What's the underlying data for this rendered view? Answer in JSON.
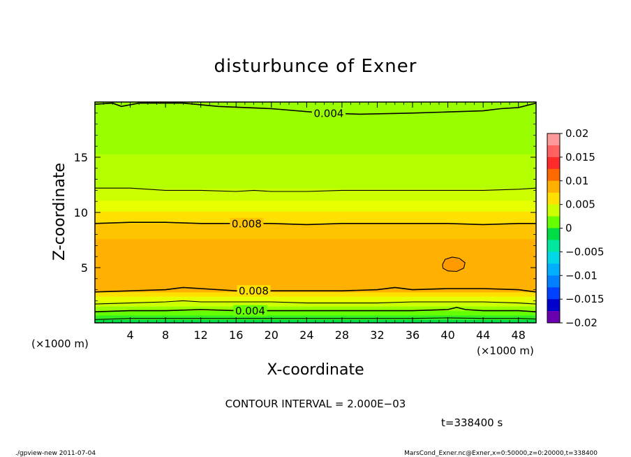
{
  "chart_data": {
    "type": "heatmap",
    "title": "disturbunce of Exner",
    "xlabel": "X-coordinate",
    "ylabel": "Z-coordinate",
    "x_unit_label": "(×1000 m)",
    "y_unit_label": "(×1000 m)",
    "xlim": [
      0,
      50
    ],
    "ylim": [
      0,
      20
    ],
    "x_ticks": [
      4,
      8,
      12,
      16,
      20,
      24,
      28,
      32,
      36,
      40,
      44,
      48
    ],
    "y_ticks": [
      5,
      10,
      15
    ],
    "colorbar": {
      "min": -0.02,
      "max": 0.02,
      "tick_values": [
        0.02,
        0.015,
        0.01,
        0.005,
        0,
        -0.005,
        -0.01,
        -0.015,
        -0.02
      ],
      "tick_labels": [
        "0.02",
        "0.015",
        "0.01",
        "0.005",
        "0",
        "−0.005",
        "−0.01",
        "−0.015",
        "−0.02"
      ],
      "levels": [
        {
          "from": 0.0175,
          "to": 0.02,
          "color": "#ff9a9a"
        },
        {
          "from": 0.015,
          "to": 0.0175,
          "color": "#ff6060"
        },
        {
          "from": 0.0125,
          "to": 0.015,
          "color": "#ff2a2a"
        },
        {
          "from": 0.01,
          "to": 0.0125,
          "color": "#ff6a00"
        },
        {
          "from": 0.0075,
          "to": 0.01,
          "color": "#ffb000"
        },
        {
          "from": 0.005,
          "to": 0.0075,
          "color": "#ffe000"
        },
        {
          "from": 0.0025,
          "to": 0.005,
          "color": "#ccff00"
        },
        {
          "from": 0,
          "to": 0.0025,
          "color": "#66ff00"
        },
        {
          "from": -0.0025,
          "to": 0,
          "color": "#00dd44"
        },
        {
          "from": -0.005,
          "to": -0.0025,
          "color": "#00e8a0"
        },
        {
          "from": -0.0075,
          "to": -0.005,
          "color": "#00d8e8"
        },
        {
          "from": -0.01,
          "to": -0.0075,
          "color": "#00b0ff"
        },
        {
          "from": -0.0125,
          "to": -0.01,
          "color": "#0080ff"
        },
        {
          "from": -0.015,
          "to": -0.0125,
          "color": "#0040ff"
        },
        {
          "from": -0.0175,
          "to": -0.015,
          "color": "#0000cc"
        },
        {
          "from": -0.02,
          "to": -0.0175,
          "color": "#6a00b0"
        }
      ]
    },
    "field_bands": [
      {
        "z0": 0.0,
        "z1": 0.3,
        "color": "#00dd44"
      },
      {
        "z0": 0.3,
        "z1": 0.7,
        "color": "#33ee22"
      },
      {
        "z0": 0.7,
        "z1": 1.1,
        "color": "#66ff00"
      },
      {
        "z0": 1.1,
        "z1": 1.5,
        "color": "#99ff00"
      },
      {
        "z0": 1.5,
        "z1": 1.9,
        "color": "#ccff00"
      },
      {
        "z0": 1.9,
        "z1": 2.4,
        "color": "#e8ff00"
      },
      {
        "z0": 2.4,
        "z1": 2.8,
        "color": "#ffe000"
      },
      {
        "z0": 2.8,
        "z1": 7.6,
        "color": "#ffb000"
      },
      {
        "z0": 7.6,
        "z1": 9.0,
        "color": "#ffc400"
      },
      {
        "z0": 9.0,
        "z1": 10.1,
        "color": "#ffe000"
      },
      {
        "z0": 10.1,
        "z1": 11.1,
        "color": "#e8ff00"
      },
      {
        "z0": 11.1,
        "z1": 12.2,
        "color": "#ccff00"
      },
      {
        "z0": 12.2,
        "z1": 15.3,
        "color": "#b4ff00"
      },
      {
        "z0": 15.3,
        "z1": 20.0,
        "color": "#99ff00"
      }
    ],
    "contours": [
      {
        "level": 0.004,
        "label": "0.004",
        "label_x": 26.5,
        "points": [
          [
            0,
            19.8
          ],
          [
            2,
            19.9
          ],
          [
            3,
            19.6
          ],
          [
            5,
            19.9
          ],
          [
            10,
            19.9
          ],
          [
            14,
            19.6
          ],
          [
            20,
            19.4
          ],
          [
            26,
            19.0
          ],
          [
            30,
            18.9
          ],
          [
            36,
            19.0
          ],
          [
            40,
            19.1
          ],
          [
            44,
            19.2
          ],
          [
            46,
            19.4
          ],
          [
            48,
            19.5
          ],
          [
            50,
            19.9
          ]
        ]
      },
      {
        "level": 0.006,
        "label": "",
        "label_x": null,
        "points": [
          [
            0,
            12.2
          ],
          [
            4,
            12.2
          ],
          [
            8,
            12.0
          ],
          [
            12,
            12.0
          ],
          [
            16,
            11.9
          ],
          [
            18,
            12.0
          ],
          [
            20,
            11.9
          ],
          [
            24,
            11.9
          ],
          [
            28,
            12.0
          ],
          [
            32,
            12.0
          ],
          [
            36,
            12.0
          ],
          [
            40,
            12.0
          ],
          [
            44,
            12.0
          ],
          [
            48,
            12.1
          ],
          [
            50,
            12.2
          ]
        ]
      },
      {
        "level": 0.008,
        "label": "0.008",
        "label_x": 17.2,
        "points": [
          [
            0,
            9.0
          ],
          [
            4,
            9.1
          ],
          [
            8,
            9.1
          ],
          [
            12,
            9.0
          ],
          [
            16,
            9.0
          ],
          [
            20,
            9.0
          ],
          [
            24,
            8.9
          ],
          [
            28,
            9.0
          ],
          [
            32,
            9.0
          ],
          [
            36,
            9.0
          ],
          [
            40,
            9.0
          ],
          [
            44,
            8.9
          ],
          [
            48,
            9.0
          ],
          [
            50,
            9.0
          ]
        ]
      },
      {
        "level": 0.01,
        "label": "",
        "label_x": null,
        "points": [
          [
            39.4,
            5.3
          ],
          [
            39.7,
            5.75
          ],
          [
            40.5,
            5.95
          ],
          [
            41.3,
            5.85
          ],
          [
            41.95,
            5.45
          ],
          [
            41.8,
            4.95
          ],
          [
            41.0,
            4.65
          ],
          [
            40.0,
            4.7
          ],
          [
            39.45,
            4.95
          ],
          [
            39.4,
            5.3
          ]
        ]
      },
      {
        "level": 0.008,
        "label": "0.008",
        "label_x": 18.0,
        "points": [
          [
            0,
            2.8
          ],
          [
            4,
            2.9
          ],
          [
            8,
            3.0
          ],
          [
            10,
            3.2
          ],
          [
            12,
            3.1
          ],
          [
            16,
            2.9
          ],
          [
            20,
            2.9
          ],
          [
            24,
            2.9
          ],
          [
            28,
            2.9
          ],
          [
            32,
            3.0
          ],
          [
            34,
            3.2
          ],
          [
            36,
            3.0
          ],
          [
            40,
            3.1
          ],
          [
            42,
            3.1
          ],
          [
            44,
            3.1
          ],
          [
            48,
            3.0
          ],
          [
            50,
            2.8
          ]
        ]
      },
      {
        "level": 0.006,
        "label": "",
        "label_x": null,
        "points": [
          [
            0,
            1.7
          ],
          [
            4,
            1.8
          ],
          [
            8,
            1.9
          ],
          [
            10,
            2.0
          ],
          [
            12,
            1.9
          ],
          [
            16,
            1.9
          ],
          [
            20,
            1.9
          ],
          [
            24,
            1.8
          ],
          [
            28,
            1.8
          ],
          [
            32,
            1.8
          ],
          [
            36,
            1.9
          ],
          [
            40,
            1.9
          ],
          [
            44,
            1.9
          ],
          [
            48,
            1.8
          ],
          [
            50,
            1.7
          ]
        ]
      },
      {
        "level": 0.004,
        "label": "0.004",
        "label_x": 17.6,
        "points": [
          [
            0,
            1.0
          ],
          [
            4,
            1.1
          ],
          [
            8,
            1.1
          ],
          [
            12,
            1.2
          ],
          [
            16,
            1.1
          ],
          [
            20,
            1.1
          ],
          [
            24,
            1.1
          ],
          [
            28,
            1.1
          ],
          [
            32,
            1.1
          ],
          [
            36,
            1.1
          ],
          [
            40,
            1.2
          ],
          [
            41,
            1.4
          ],
          [
            42,
            1.2
          ],
          [
            44,
            1.1
          ],
          [
            48,
            1.1
          ],
          [
            50,
            1.0
          ]
        ]
      },
      {
        "level": 0.002,
        "label": "",
        "label_x": null,
        "points": [
          [
            0,
            0.3
          ],
          [
            4,
            0.4
          ],
          [
            8,
            0.4
          ],
          [
            12,
            0.4
          ],
          [
            16,
            0.4
          ],
          [
            20,
            0.4
          ],
          [
            24,
            0.4
          ],
          [
            28,
            0.4
          ],
          [
            32,
            0.4
          ],
          [
            36,
            0.4
          ],
          [
            40,
            0.45
          ],
          [
            44,
            0.4
          ],
          [
            48,
            0.4
          ],
          [
            50,
            0.35
          ]
        ]
      }
    ],
    "contour_interval_text": "CONTOUR INTERVAL = 2.000E−03",
    "time_text": "t=338400 s"
  },
  "footer": {
    "left": "./gpview-new 2011-07-04",
    "right": "MarsCond_Exner.nc@Exner,x=0:50000,z=0:20000,t=338400"
  }
}
